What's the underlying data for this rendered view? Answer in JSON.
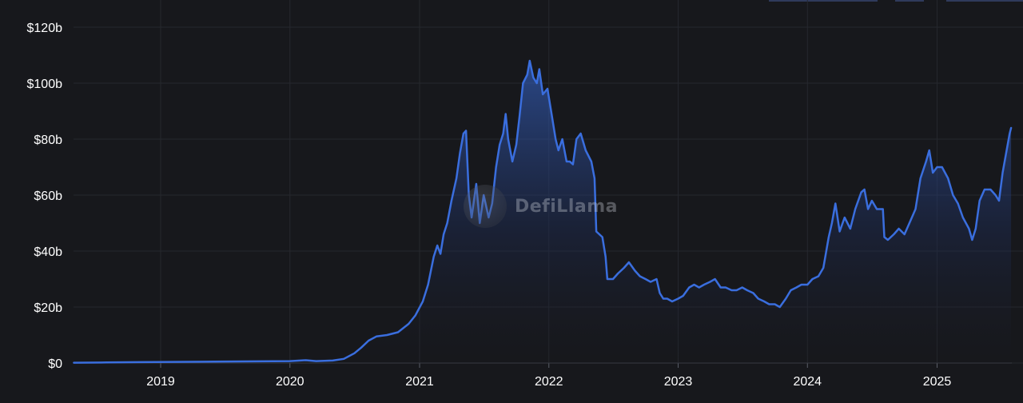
{
  "watermark": {
    "text": "DefiLlama"
  },
  "colors": {
    "background": "#17181c",
    "line": "#3a6ede",
    "grid": "#26282e",
    "text": "#ffffff"
  },
  "chart_data": {
    "type": "area",
    "title": "",
    "xlabel": "",
    "ylabel": "",
    "grid": true,
    "legend": "none",
    "y_ticks": [
      "$0",
      "$20b",
      "$40b",
      "$60b",
      "$80b",
      "$100b",
      "$120b"
    ],
    "y_tick_values": [
      0,
      20,
      40,
      60,
      80,
      100,
      120
    ],
    "x_ticks": [
      "2019",
      "2020",
      "2021",
      "2022",
      "2023",
      "2024",
      "2025"
    ],
    "x_tick_values": [
      "2019-01-01",
      "2020-01-01",
      "2021-01-01",
      "2022-01-01",
      "2023-01-01",
      "2024-01-01",
      "2025-01-01"
    ],
    "xlim": [
      "2018-04-30",
      "2025-07-31"
    ],
    "ylim": [
      0,
      120
    ],
    "series": [
      {
        "unit": "USD billions",
        "points": [
          [
            "2018-05-01",
            0.1
          ],
          [
            "2018-08-01",
            0.2
          ],
          [
            "2018-11-01",
            0.3
          ],
          [
            "2019-02-01",
            0.4
          ],
          [
            "2019-06-01",
            0.5
          ],
          [
            "2019-10-01",
            0.6
          ],
          [
            "2020-01-01",
            0.7
          ],
          [
            "2020-02-15",
            1.0
          ],
          [
            "2020-03-15",
            0.7
          ],
          [
            "2020-05-01",
            0.9
          ],
          [
            "2020-06-01",
            1.5
          ],
          [
            "2020-07-01",
            3.5
          ],
          [
            "2020-07-20",
            5.5
          ],
          [
            "2020-08-10",
            8.0
          ],
          [
            "2020-09-01",
            9.5
          ],
          [
            "2020-10-01",
            10.0
          ],
          [
            "2020-11-01",
            11.0
          ],
          [
            "2020-12-01",
            14.0
          ],
          [
            "2020-12-20",
            17.0
          ],
          [
            "2021-01-10",
            22.0
          ],
          [
            "2021-01-25",
            28.0
          ],
          [
            "2021-02-10",
            38.0
          ],
          [
            "2021-02-20",
            42.0
          ],
          [
            "2021-03-01",
            39.0
          ],
          [
            "2021-03-10",
            46.0
          ],
          [
            "2021-03-20",
            50.0
          ],
          [
            "2021-04-01",
            58.0
          ],
          [
            "2021-04-15",
            66.0
          ],
          [
            "2021-04-25",
            75.0
          ],
          [
            "2021-05-05",
            82.0
          ],
          [
            "2021-05-12",
            83.0
          ],
          [
            "2021-05-20",
            60.0
          ],
          [
            "2021-05-28",
            52.0
          ],
          [
            "2021-06-10",
            64.0
          ],
          [
            "2021-06-20",
            50.0
          ],
          [
            "2021-07-01",
            60.0
          ],
          [
            "2021-07-15",
            52.0
          ],
          [
            "2021-07-25",
            57.0
          ],
          [
            "2021-08-05",
            70.0
          ],
          [
            "2021-08-15",
            78.0
          ],
          [
            "2021-08-25",
            82.0
          ],
          [
            "2021-09-01",
            89.0
          ],
          [
            "2021-09-08",
            80.0
          ],
          [
            "2021-09-20",
            72.0
          ],
          [
            "2021-10-01",
            78.0
          ],
          [
            "2021-10-10",
            88.0
          ],
          [
            "2021-10-20",
            100.0
          ],
          [
            "2021-11-01",
            103.0
          ],
          [
            "2021-11-08",
            108.0
          ],
          [
            "2021-11-18",
            102.0
          ],
          [
            "2021-11-28",
            100.0
          ],
          [
            "2021-12-05",
            105.0
          ],
          [
            "2021-12-15",
            96.0
          ],
          [
            "2021-12-28",
            98.0
          ],
          [
            "2022-01-10",
            88.0
          ],
          [
            "2022-01-20",
            80.0
          ],
          [
            "2022-01-28",
            76.0
          ],
          [
            "2022-02-08",
            80.0
          ],
          [
            "2022-02-20",
            72.0
          ],
          [
            "2022-03-01",
            72.0
          ],
          [
            "2022-03-10",
            71.0
          ],
          [
            "2022-03-20",
            80.0
          ],
          [
            "2022-04-01",
            82.0
          ],
          [
            "2022-04-15",
            76.0
          ],
          [
            "2022-05-01",
            72.0
          ],
          [
            "2022-05-10",
            66.0
          ],
          [
            "2022-05-15",
            47.0
          ],
          [
            "2022-06-01",
            45.0
          ],
          [
            "2022-06-10",
            38.0
          ],
          [
            "2022-06-15",
            30.0
          ],
          [
            "2022-07-01",
            30.0
          ],
          [
            "2022-07-15",
            32.0
          ],
          [
            "2022-08-01",
            34.0
          ],
          [
            "2022-08-15",
            36.0
          ],
          [
            "2022-09-01",
            33.0
          ],
          [
            "2022-09-15",
            31.0
          ],
          [
            "2022-10-01",
            30.0
          ],
          [
            "2022-10-15",
            29.0
          ],
          [
            "2022-11-01",
            30.0
          ],
          [
            "2022-11-10",
            25.0
          ],
          [
            "2022-11-20",
            23.0
          ],
          [
            "2022-12-01",
            23.0
          ],
          [
            "2022-12-15",
            22.0
          ],
          [
            "2023-01-01",
            23.0
          ],
          [
            "2023-01-15",
            24.0
          ],
          [
            "2023-02-01",
            27.0
          ],
          [
            "2023-02-15",
            28.0
          ],
          [
            "2023-03-01",
            27.0
          ],
          [
            "2023-03-15",
            28.0
          ],
          [
            "2023-04-01",
            29.0
          ],
          [
            "2023-04-15",
            30.0
          ],
          [
            "2023-05-01",
            27.0
          ],
          [
            "2023-05-15",
            27.0
          ],
          [
            "2023-06-01",
            26.0
          ],
          [
            "2023-06-15",
            26.0
          ],
          [
            "2023-07-01",
            27.0
          ],
          [
            "2023-07-15",
            26.0
          ],
          [
            "2023-08-01",
            25.0
          ],
          [
            "2023-08-15",
            23.0
          ],
          [
            "2023-09-01",
            22.0
          ],
          [
            "2023-09-15",
            21.0
          ],
          [
            "2023-10-01",
            21.0
          ],
          [
            "2023-10-15",
            20.0
          ],
          [
            "2023-11-01",
            23.0
          ],
          [
            "2023-11-15",
            26.0
          ],
          [
            "2023-12-01",
            27.0
          ],
          [
            "2023-12-15",
            28.0
          ],
          [
            "2024-01-01",
            28.0
          ],
          [
            "2024-01-15",
            30.0
          ],
          [
            "2024-02-01",
            31.0
          ],
          [
            "2024-02-15",
            34.0
          ],
          [
            "2024-03-01",
            45.0
          ],
          [
            "2024-03-10",
            50.0
          ],
          [
            "2024-03-20",
            57.0
          ],
          [
            "2024-04-01",
            47.0
          ],
          [
            "2024-04-15",
            52.0
          ],
          [
            "2024-05-01",
            48.0
          ],
          [
            "2024-05-15",
            55.0
          ],
          [
            "2024-06-01",
            61.0
          ],
          [
            "2024-06-10",
            62.0
          ],
          [
            "2024-06-20",
            55.0
          ],
          [
            "2024-07-01",
            58.0
          ],
          [
            "2024-07-15",
            55.0
          ],
          [
            "2024-08-01",
            55.0
          ],
          [
            "2024-08-05",
            45.0
          ],
          [
            "2024-08-15",
            44.0
          ],
          [
            "2024-09-01",
            46.0
          ],
          [
            "2024-09-15",
            48.0
          ],
          [
            "2024-10-01",
            46.0
          ],
          [
            "2024-10-15",
            50.0
          ],
          [
            "2024-11-01",
            55.0
          ],
          [
            "2024-11-15",
            66.0
          ],
          [
            "2024-12-01",
            72.0
          ],
          [
            "2024-12-10",
            76.0
          ],
          [
            "2024-12-20",
            68.0
          ],
          [
            "2025-01-01",
            70.0
          ],
          [
            "2025-01-15",
            70.0
          ],
          [
            "2025-02-01",
            66.0
          ],
          [
            "2025-02-15",
            60.0
          ],
          [
            "2025-03-01",
            57.0
          ],
          [
            "2025-03-15",
            52.0
          ],
          [
            "2025-04-01",
            48.0
          ],
          [
            "2025-04-10",
            44.0
          ],
          [
            "2025-04-20",
            48.0
          ],
          [
            "2025-05-01",
            58.0
          ],
          [
            "2025-05-15",
            62.0
          ],
          [
            "2025-06-01",
            62.0
          ],
          [
            "2025-06-15",
            60.0
          ],
          [
            "2025-06-25",
            58.0
          ],
          [
            "2025-07-05",
            68.0
          ],
          [
            "2025-07-15",
            75.0
          ],
          [
            "2025-07-25",
            82.0
          ],
          [
            "2025-07-29",
            84.0
          ]
        ]
      }
    ]
  }
}
